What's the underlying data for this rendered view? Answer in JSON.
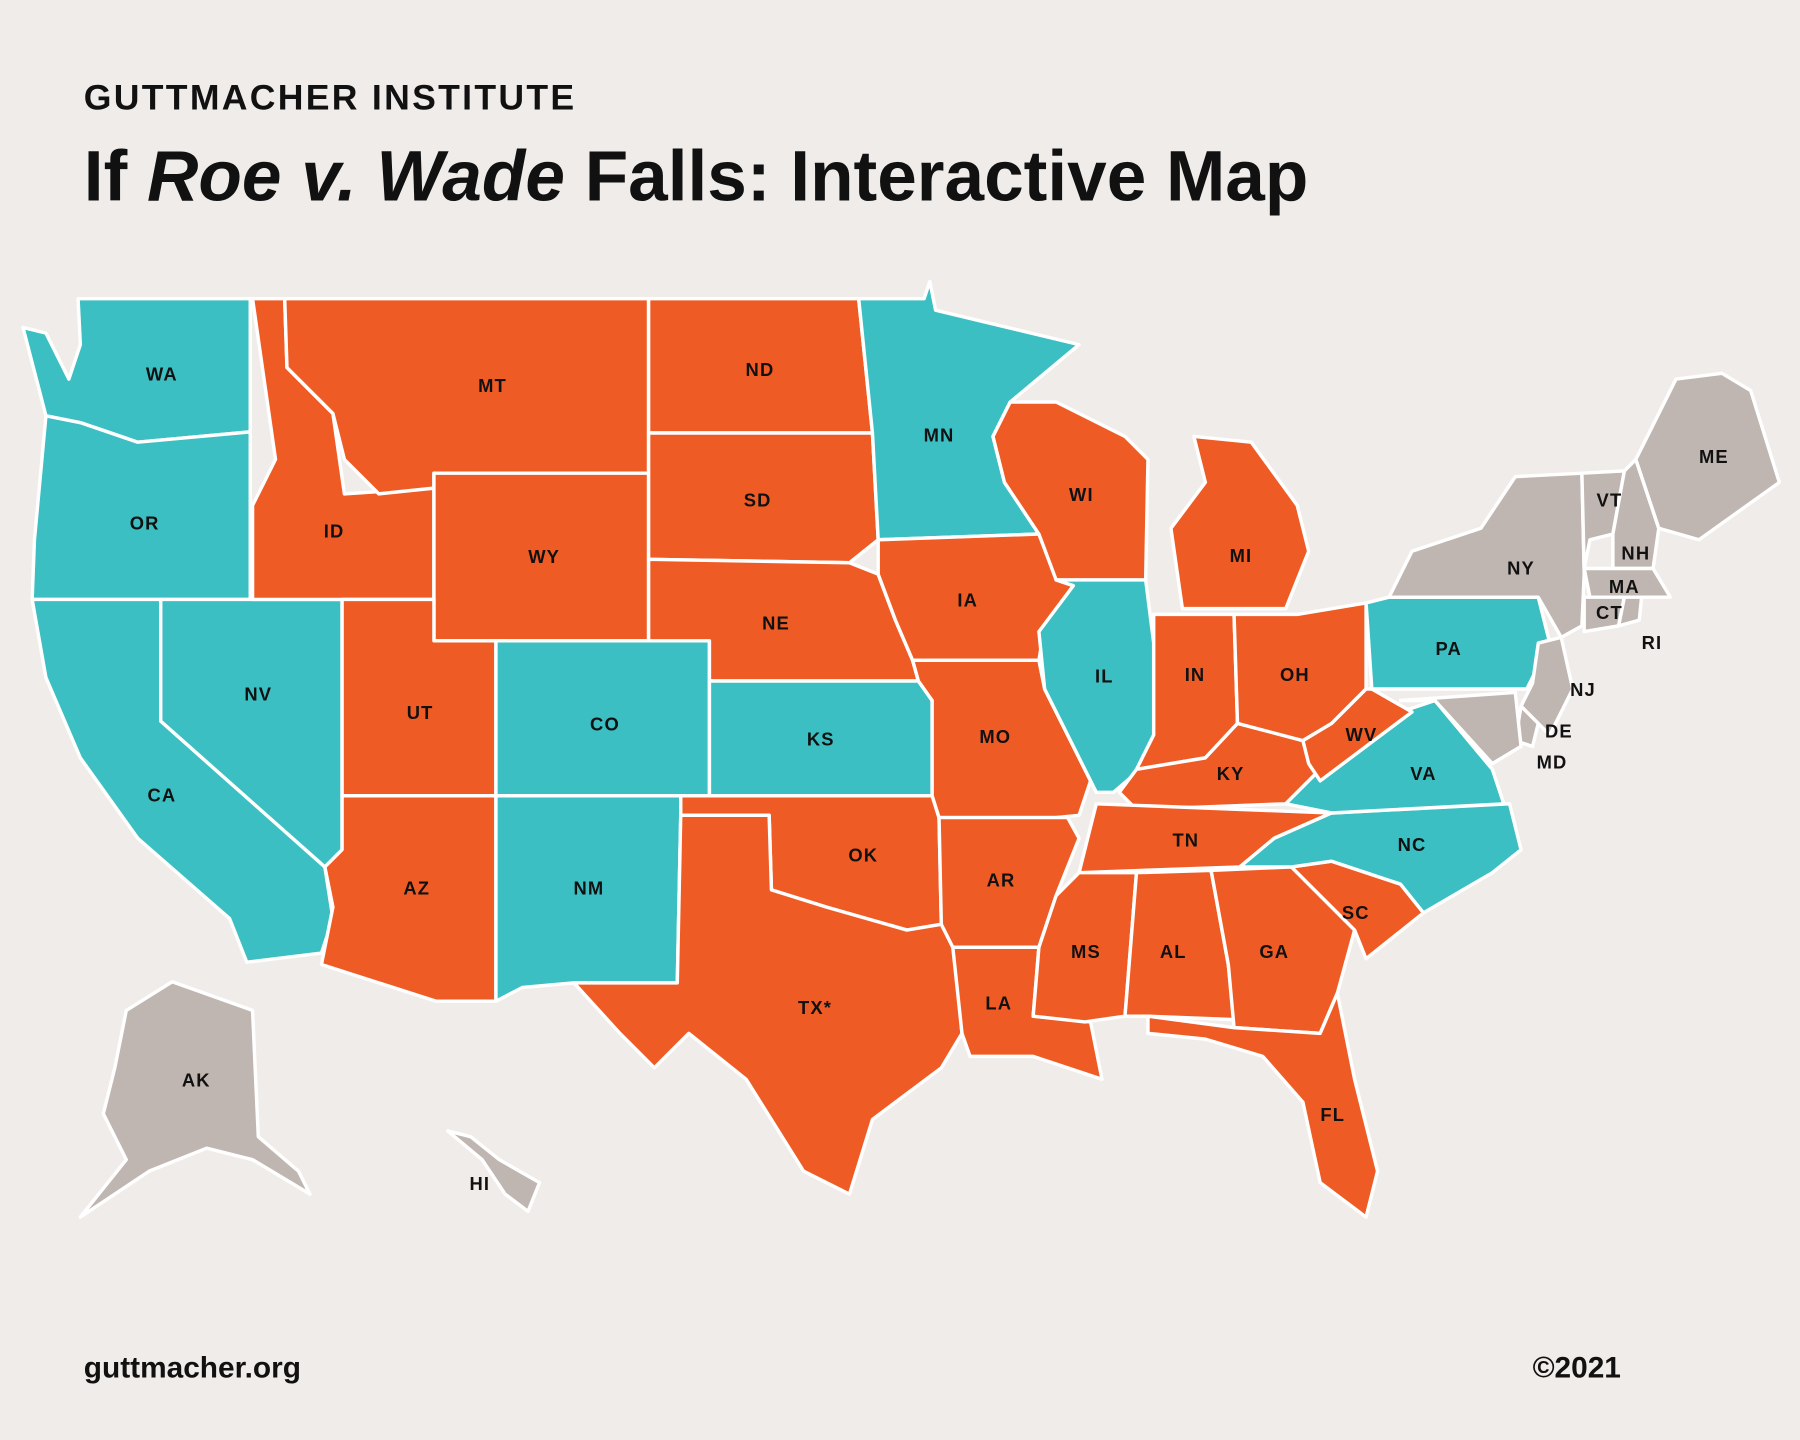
{
  "header": {
    "org": "GUTTMACHER INSTITUTE",
    "title": [
      {
        "text": "If ",
        "italic": false
      },
      {
        "text": "Roe v. Wade",
        "italic": true
      },
      {
        "text": " Falls: Interactive Map",
        "italic": false
      }
    ]
  },
  "states": [
    {
      "label": "WA",
      "color": "#3cbfc2"
    },
    {
      "label": "OR",
      "color": "#3cbfc2"
    },
    {
      "label": "CA",
      "color": "#3cbfc2"
    },
    {
      "label": "NV",
      "color": "#3cbfc2"
    },
    {
      "label": "ID",
      "color": "#ef5b24"
    },
    {
      "label": "MT",
      "color": "#ef5b24"
    },
    {
      "label": "WY",
      "color": "#ef5b24"
    },
    {
      "label": "UT",
      "color": "#ef5b24"
    },
    {
      "label": "AZ",
      "color": "#ef5b24"
    },
    {
      "label": "CO",
      "color": "#3cbfc2"
    },
    {
      "label": "NM",
      "color": "#3cbfc2"
    },
    {
      "label": "ND",
      "color": "#ef5b24"
    },
    {
      "label": "SD",
      "color": "#ef5b24"
    },
    {
      "label": "NE",
      "color": "#ef5b24"
    },
    {
      "label": "KS",
      "color": "#3cbfc2"
    },
    {
      "label": "OK",
      "color": "#ef5b24"
    },
    {
      "label": "TX*",
      "color": "#ef5b24"
    },
    {
      "label": "MN",
      "color": "#3cbfc2"
    },
    {
      "label": "IA",
      "color": "#ef5b24"
    },
    {
      "label": "MO",
      "color": "#ef5b24"
    },
    {
      "label": "AR",
      "color": "#ef5b24"
    },
    {
      "label": "LA",
      "color": "#ef5b24"
    },
    {
      "label": "WI",
      "color": "#ef5b24"
    },
    {
      "label": "IL",
      "color": "#3cbfc2"
    },
    {
      "label": "MI",
      "color": "#ef5b24"
    },
    {
      "label": "IN",
      "color": "#ef5b24"
    },
    {
      "label": "OH",
      "color": "#ef5b24"
    },
    {
      "label": "KY",
      "color": "#ef5b24"
    },
    {
      "label": "TN",
      "color": "#ef5b24"
    },
    {
      "label": "MS",
      "color": "#ef5b24"
    },
    {
      "label": "AL",
      "color": "#ef5b24"
    },
    {
      "label": "GA",
      "color": "#ef5b24"
    },
    {
      "label": "FL",
      "color": "#ef5b24"
    },
    {
      "label": "SC",
      "color": "#ef5b24"
    },
    {
      "label": "NC",
      "color": "#3cbfc2"
    },
    {
      "label": "VA",
      "color": "#3cbfc2"
    },
    {
      "label": "WV",
      "color": "#ef5b24"
    },
    {
      "label": "PA",
      "color": "#3cbfc2"
    },
    {
      "label": "NY",
      "color": "#bfb5b1"
    },
    {
      "label": "VT",
      "color": "#bfb5b1"
    },
    {
      "label": "NH",
      "color": "#bfb5b1"
    },
    {
      "label": "ME",
      "color": "#bfb5b1"
    },
    {
      "label": "MA",
      "color": "#bfb5b1"
    },
    {
      "label": "CT",
      "color": "#bfb5b1"
    },
    {
      "label": "RI",
      "color": "#bfb5b1"
    },
    {
      "label": "NJ",
      "color": "#bfb5b1"
    },
    {
      "label": "DE",
      "color": "#bfb5b1"
    },
    {
      "label": "MD",
      "color": "#bfb5b1"
    },
    {
      "label": "AK",
      "color": "#bfb5b1"
    },
    {
      "label": "HI",
      "color": "#bfb5b1"
    }
  ],
  "footer": {
    "url": "guttmacher.org",
    "copyright": "©2021"
  }
}
